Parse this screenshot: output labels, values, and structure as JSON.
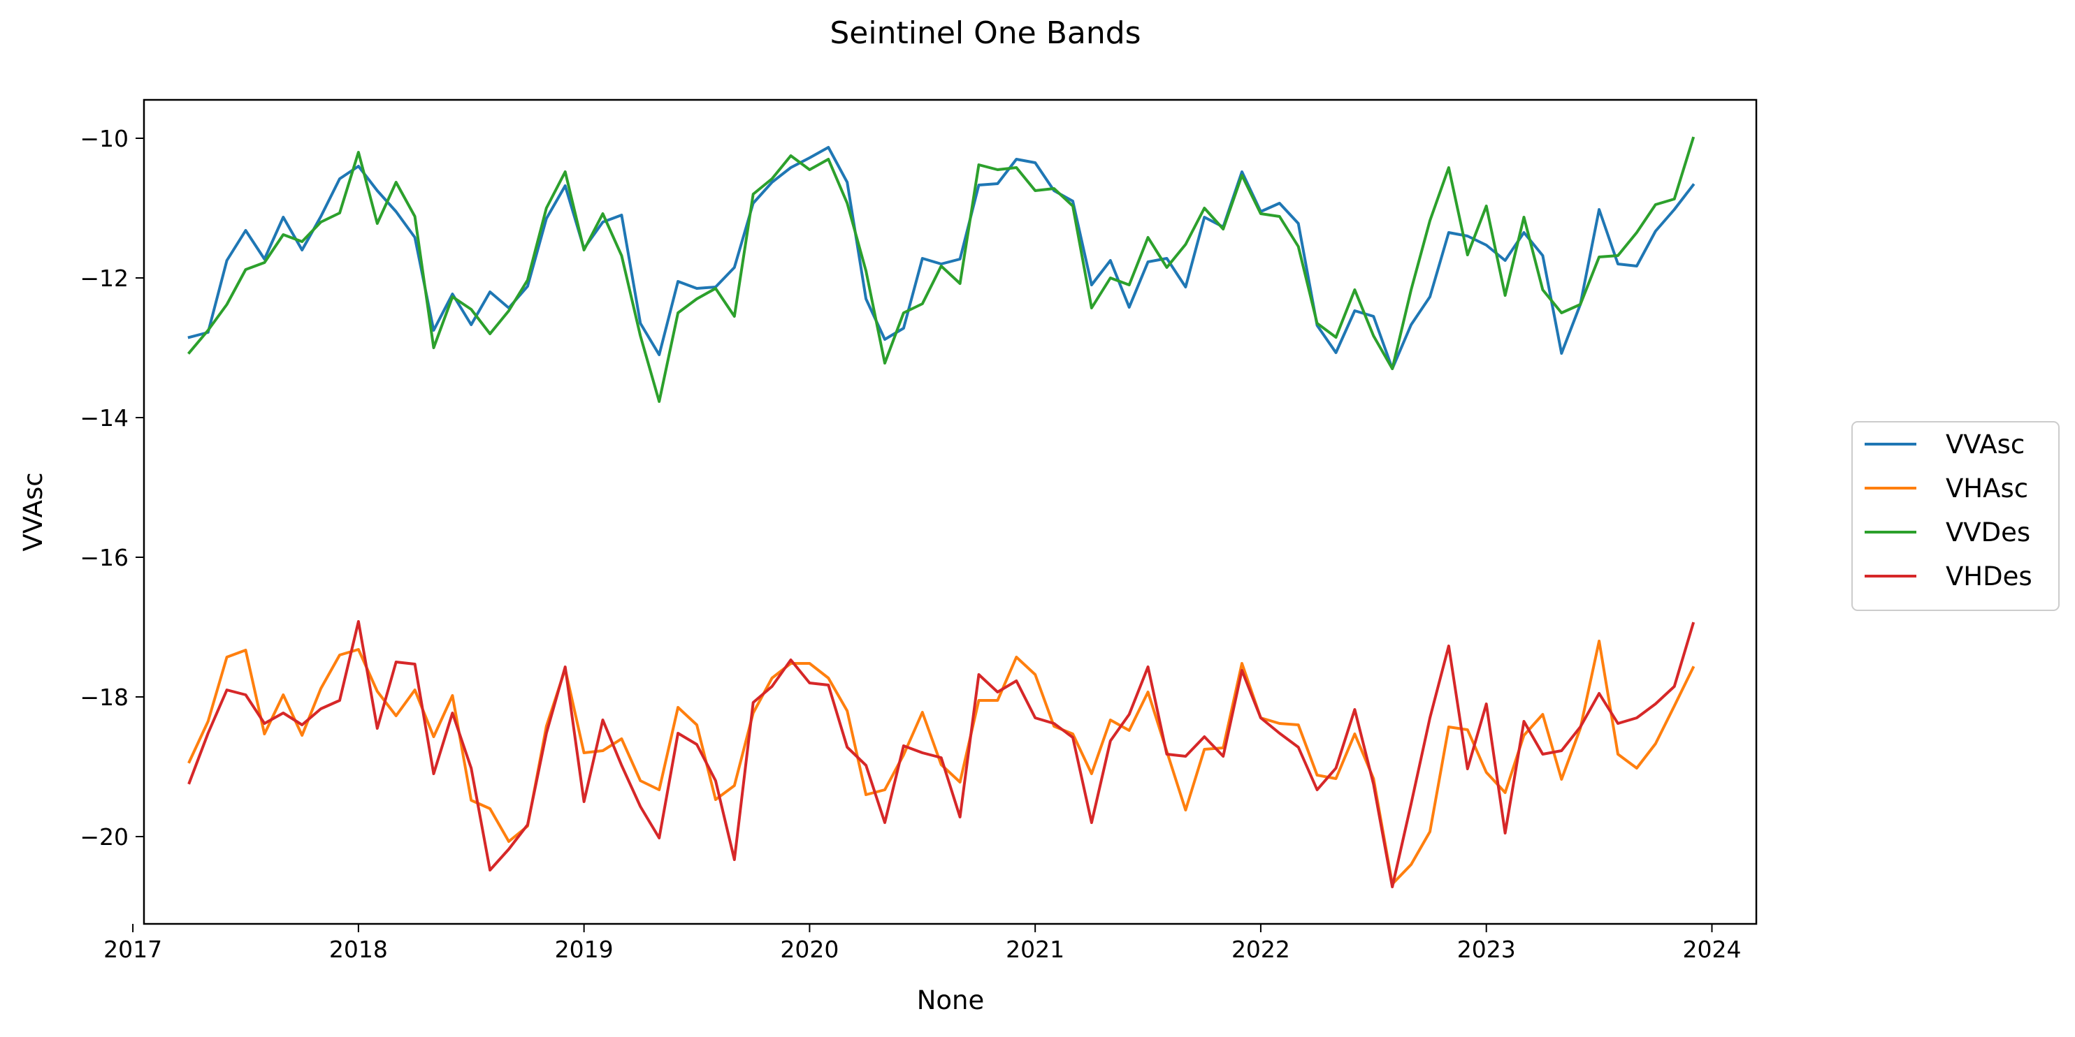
{
  "chart_data": {
    "type": "line",
    "title": "Seintinel One Bands",
    "xlabel": "None",
    "ylabel": "VVAsc",
    "x_ticks": [
      "2017",
      "2018",
      "2019",
      "2020",
      "2021",
      "2022",
      "2023",
      "2024"
    ],
    "y_ticks": [
      "−20",
      "−18",
      "−16",
      "−14",
      "−12",
      "−10"
    ],
    "xlim": [
      "2017-01-19",
      "2024-03-12"
    ],
    "ylim": [
      -21.25,
      -9.45
    ],
    "grid": false,
    "legend_position": "right",
    "x": [
      "2017-04",
      "2017-05",
      "2017-06",
      "2017-07",
      "2017-08",
      "2017-09",
      "2017-10",
      "2017-11",
      "2017-12",
      "2018-01",
      "2018-02",
      "2018-03",
      "2018-04",
      "2018-05",
      "2018-06",
      "2018-07",
      "2018-08",
      "2018-09",
      "2018-10",
      "2018-11",
      "2018-12",
      "2019-01",
      "2019-02",
      "2019-03",
      "2019-04",
      "2019-05",
      "2019-06",
      "2019-07",
      "2019-08",
      "2019-09",
      "2019-10",
      "2019-11",
      "2019-12",
      "2020-01",
      "2020-02",
      "2020-03",
      "2020-04",
      "2020-05",
      "2020-06",
      "2020-07",
      "2020-08",
      "2020-09",
      "2020-10",
      "2020-11",
      "2020-12",
      "2021-01",
      "2021-02",
      "2021-03",
      "2021-04",
      "2021-05",
      "2021-06",
      "2021-07",
      "2021-08",
      "2021-09",
      "2021-10",
      "2021-11",
      "2021-12",
      "2022-01",
      "2022-02",
      "2022-03",
      "2022-04",
      "2022-05",
      "2022-06",
      "2022-07",
      "2022-08",
      "2022-09",
      "2022-10",
      "2022-11",
      "2022-12",
      "2023-01",
      "2023-02",
      "2023-03",
      "2023-04",
      "2023-05",
      "2023-06",
      "2023-07",
      "2023-08",
      "2023-09",
      "2023-10",
      "2023-11",
      "2023-12"
    ],
    "series": [
      {
        "name": "VVAsc",
        "color": "#1f77b4",
        "values": [
          -12.85,
          -12.78,
          -11.75,
          -11.32,
          -11.73,
          -11.13,
          -11.6,
          -11.12,
          -10.58,
          -10.4,
          -10.75,
          -11.05,
          -11.42,
          -12.75,
          -12.23,
          -12.67,
          -12.2,
          -12.43,
          -12.12,
          -11.15,
          -10.68,
          -11.58,
          -11.2,
          -11.1,
          -12.65,
          -13.1,
          -12.05,
          -12.15,
          -12.13,
          -11.85,
          -10.93,
          -10.63,
          -10.42,
          -10.28,
          -10.13,
          -10.63,
          -12.3,
          -12.88,
          -12.72,
          -11.72,
          -11.8,
          -11.73,
          -10.67,
          -10.65,
          -10.3,
          -10.35,
          -10.75,
          -10.9,
          -12.1,
          -11.75,
          -12.42,
          -11.77,
          -11.72,
          -12.13,
          -11.13,
          -11.27,
          -10.48,
          -11.05,
          -10.93,
          -11.22,
          -12.68,
          -13.07,
          -12.47,
          -12.55,
          -13.3,
          -12.67,
          -12.27,
          -11.35,
          -11.4,
          -11.53,
          -11.75,
          -11.35,
          -11.68,
          -13.08,
          -12.38,
          -11.02,
          -11.8,
          -11.83,
          -11.33,
          -11.02,
          -10.67
        ]
      },
      {
        "name": "VHAsc",
        "color": "#ff7f0e",
        "values": [
          -18.93,
          -18.35,
          -17.43,
          -17.33,
          -18.53,
          -17.97,
          -18.55,
          -17.88,
          -17.4,
          -17.32,
          -17.92,
          -18.27,
          -17.9,
          -18.57,
          -17.98,
          -19.48,
          -19.6,
          -20.07,
          -19.85,
          -18.42,
          -17.6,
          -18.8,
          -18.77,
          -18.6,
          -19.2,
          -19.33,
          -18.15,
          -18.4,
          -19.47,
          -19.27,
          -18.23,
          -17.73,
          -17.52,
          -17.52,
          -17.73,
          -18.2,
          -19.4,
          -19.33,
          -18.83,
          -18.22,
          -18.97,
          -19.22,
          -18.05,
          -18.05,
          -17.43,
          -17.68,
          -18.42,
          -18.53,
          -19.1,
          -18.33,
          -18.48,
          -17.93,
          -18.78,
          -19.62,
          -18.75,
          -18.73,
          -17.52,
          -18.3,
          -18.38,
          -18.4,
          -19.12,
          -19.17,
          -18.53,
          -19.17,
          -20.68,
          -20.4,
          -19.93,
          -18.43,
          -18.47,
          -19.08,
          -19.37,
          -18.55,
          -18.25,
          -19.18,
          -18.45,
          -17.2,
          -18.82,
          -19.02,
          -18.67,
          -18.13,
          -17.58
        ]
      },
      {
        "name": "VVDes",
        "color": "#2ca02c",
        "values": [
          -13.07,
          -12.75,
          -12.38,
          -11.88,
          -11.78,
          -11.38,
          -11.48,
          -11.2,
          -11.07,
          -10.2,
          -11.22,
          -10.63,
          -11.12,
          -13.0,
          -12.27,
          -12.45,
          -12.8,
          -12.47,
          -12.03,
          -11.0,
          -10.48,
          -11.6,
          -11.08,
          -11.68,
          -12.83,
          -13.77,
          -12.5,
          -12.3,
          -12.15,
          -12.55,
          -10.8,
          -10.58,
          -10.25,
          -10.45,
          -10.3,
          -10.93,
          -11.9,
          -13.22,
          -12.5,
          -12.37,
          -11.83,
          -12.08,
          -10.38,
          -10.45,
          -10.42,
          -10.75,
          -10.72,
          -10.97,
          -12.43,
          -12.0,
          -12.1,
          -11.42,
          -11.85,
          -11.52,
          -11.0,
          -11.3,
          -10.53,
          -11.08,
          -11.12,
          -11.55,
          -12.65,
          -12.85,
          -12.17,
          -12.83,
          -13.3,
          -12.17,
          -11.18,
          -10.42,
          -11.67,
          -10.97,
          -12.25,
          -11.13,
          -12.17,
          -12.5,
          -12.38,
          -11.7,
          -11.68,
          -11.35,
          -10.95,
          -10.87,
          -10.0
        ]
      },
      {
        "name": "VHDes",
        "color": "#d62728",
        "values": [
          -19.23,
          -18.52,
          -17.9,
          -17.97,
          -18.38,
          -18.23,
          -18.4,
          -18.17,
          -18.05,
          -16.92,
          -18.45,
          -17.5,
          -17.53,
          -19.1,
          -18.23,
          -19.02,
          -20.48,
          -20.18,
          -19.83,
          -18.52,
          -17.57,
          -19.5,
          -18.33,
          -18.98,
          -19.57,
          -20.02,
          -18.52,
          -18.68,
          -19.2,
          -20.33,
          -18.08,
          -17.85,
          -17.47,
          -17.8,
          -17.83,
          -18.72,
          -18.98,
          -19.8,
          -18.7,
          -18.8,
          -18.87,
          -19.72,
          -17.68,
          -17.93,
          -17.77,
          -18.3,
          -18.38,
          -18.58,
          -19.8,
          -18.63,
          -18.25,
          -17.57,
          -18.82,
          -18.85,
          -18.57,
          -18.85,
          -17.62,
          -18.3,
          -18.52,
          -18.72,
          -19.33,
          -19.02,
          -18.18,
          -19.25,
          -20.72,
          -19.53,
          -18.3,
          -17.27,
          -19.03,
          -18.1,
          -19.95,
          -18.35,
          -18.82,
          -18.77,
          -18.43,
          -17.95,
          -18.38,
          -18.3,
          -18.1,
          -17.85,
          -16.95
        ]
      }
    ]
  }
}
